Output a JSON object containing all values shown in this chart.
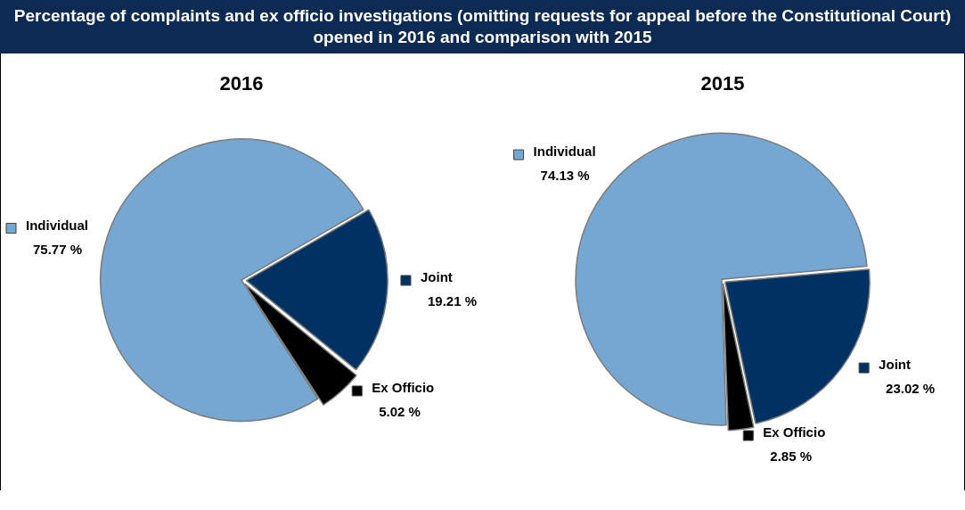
{
  "chart_data": [
    {
      "type": "other",
      "title": "Percentage of complaints and ex officio investigations (omitting requests for appeal before the Constitutional Court) opened in 2016 and comparison with 2015"
    },
    {
      "type": "pie",
      "title": "2016",
      "legend": "left",
      "categories": [
        "Individual",
        "Joint",
        "Ex Officio"
      ],
      "values": [
        75.77,
        19.21,
        5.02
      ],
      "colors": [
        "#75a7d3",
        "#003163",
        "#000000"
      ],
      "value_labels": [
        "75.77 %",
        "19.21 %",
        "5.02 %"
      ]
    },
    {
      "type": "pie",
      "title": "2015",
      "legend": "right",
      "categories": [
        "Individual",
        "Joint",
        "Ex Officio"
      ],
      "values": [
        74.13,
        23.02,
        2.85
      ],
      "colors": [
        "#75a7d3",
        "#003163",
        "#000000"
      ],
      "value_labels": [
        "74.13 %",
        "23.02 %",
        "2.85 %"
      ]
    }
  ]
}
